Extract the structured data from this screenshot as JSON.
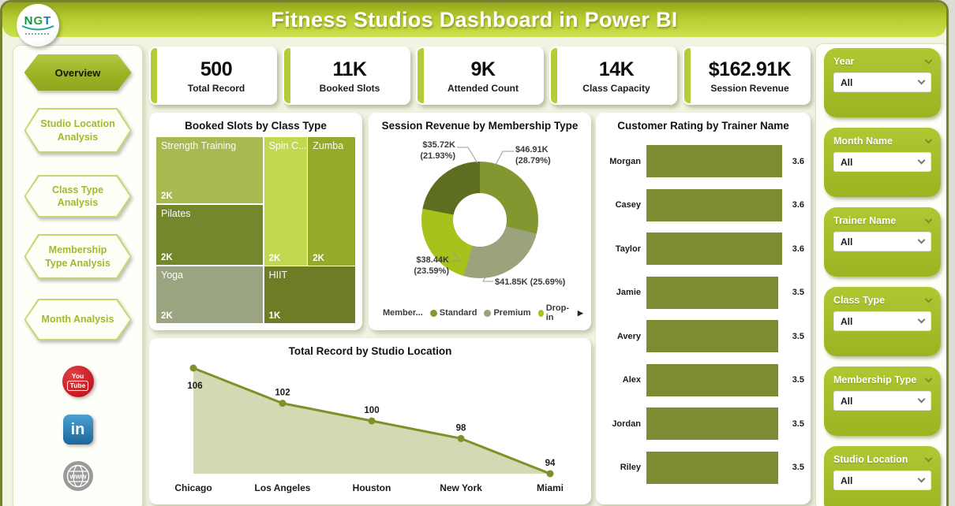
{
  "header": {
    "title": "Fitness Studios Dashboard in Power BI",
    "logo_letters": [
      {
        "ch": "N",
        "color": "#0e9147"
      },
      {
        "ch": "G",
        "color": "#2aa13e"
      },
      {
        "ch": "T",
        "color": "#1b76bf"
      }
    ]
  },
  "nav": {
    "items": [
      {
        "label": "Overview",
        "active": true
      },
      {
        "label": "Studio Location Analysis",
        "active": false
      },
      {
        "label": "Class Type Analysis",
        "active": false
      },
      {
        "label": "Membership Type Analysis",
        "active": false
      },
      {
        "label": "Month Analysis",
        "active": false
      }
    ]
  },
  "social": {
    "youtube_line1": "You",
    "youtube_line2": "Tube",
    "linkedin_text": "in",
    "globe_text": "www"
  },
  "kpis": [
    {
      "value": "500",
      "label": "Total Record"
    },
    {
      "value": "11K",
      "label": "Booked Slots"
    },
    {
      "value": "9K",
      "label": "Attended Count"
    },
    {
      "value": "14K",
      "label": "Class Capacity"
    },
    {
      "value": "$162.91K",
      "label": "Session Revenue"
    }
  ],
  "filters": {
    "items": [
      {
        "label": "Year",
        "value": "All"
      },
      {
        "label": "Month Name",
        "value": "All"
      },
      {
        "label": "Trainer Name",
        "value": "All"
      },
      {
        "label": "Class Type",
        "value": "All"
      },
      {
        "label": "Membership Type",
        "value": "All"
      },
      {
        "label": "Studio Location",
        "value": "All"
      }
    ]
  },
  "colors": {
    "accent_green": "#b5cb37",
    "header_top": "#94a51a",
    "header_bottom": "#cde04f",
    "filter_card_green": "#a6bf2b",
    "dashboard_border": "#75832c",
    "page_background": "#f1f3e3",
    "youtube_red": "#c1181f",
    "linkedin_blue": "#2b7bb9",
    "globe_gray": "#9a9a9a"
  },
  "chart_data": [
    {
      "type": "treemap",
      "title": "Booked Slots by Class Type",
      "tiles": [
        {
          "name": "Strength Training",
          "value_label": "2K",
          "value": 2000,
          "color": "#a6ba51"
        },
        {
          "name": "Spin C...",
          "value_label": "2K",
          "value": 2000,
          "color": "#c3d851"
        },
        {
          "name": "Zumba",
          "value_label": "2K",
          "value": 2000,
          "color": "#93ab28"
        },
        {
          "name": "Pilates",
          "value_label": "2K",
          "value": 2000,
          "color": "#75872c"
        },
        {
          "name": "Yoga",
          "value_label": "2K",
          "value": 2000,
          "color": "#9aa480"
        },
        {
          "name": "HIIT",
          "value_label": "1K",
          "value": 1000,
          "color": "#6d7d26"
        }
      ]
    },
    {
      "type": "pie",
      "title": "Session Revenue by Membership Type",
      "slices": [
        {
          "label": "Standard",
          "value_label": "$46.91K",
          "pct": 28.79,
          "color": "#839731"
        },
        {
          "label": "Premium",
          "value_label": "$41.85K",
          "pct": 25.69,
          "color": "#9aa37c"
        },
        {
          "label": "Drop-in",
          "value_label": "$38.44K",
          "pct": 23.59,
          "color": "#a6c21b"
        },
        {
          "label": "",
          "value_label": "$35.72K",
          "pct": 21.93,
          "color": "#5d6e20"
        }
      ],
      "callouts": [
        {
          "l1": "$35.72K",
          "l2": "(21.93%)"
        },
        {
          "l1": "$46.91K",
          "l2": "(28.79%)"
        },
        {
          "l1": "$38.44K",
          "l2": "(23.59%)"
        },
        {
          "l1": "$41.85K (25.69%)",
          "l2": ""
        }
      ],
      "legend": {
        "title": "Member...",
        "items": [
          {
            "label": "Standard",
            "color": "#839731"
          },
          {
            "label": "Premium",
            "color": "#9aa37c"
          },
          {
            "label": "Drop-in",
            "color": "#a6c21b"
          }
        ],
        "more_arrow": "▶"
      },
      "legend_position": "bottom"
    },
    {
      "type": "bar",
      "title": "Customer Rating by Trainer Name",
      "orientation": "horizontal",
      "categories": [
        "Morgan",
        "Casey",
        "Taylor",
        "Jamie",
        "Avery",
        "Alex",
        "Jordan",
        "Riley"
      ],
      "values": [
        3.6,
        3.6,
        3.6,
        3.5,
        3.5,
        3.5,
        3.5,
        3.5
      ],
      "xlim": [
        0,
        3.6
      ],
      "bar_color": "#7d8c33"
    },
    {
      "type": "area",
      "title": "Total Record by Studio Location",
      "categories": [
        "Chicago",
        "Los Angeles",
        "Houston",
        "New York",
        "Miami"
      ],
      "values": [
        106,
        102,
        100,
        98,
        94
      ],
      "ylim": [
        94,
        106
      ],
      "line_color": "#7e9128",
      "fill_color": "#cfd5ab"
    }
  ]
}
